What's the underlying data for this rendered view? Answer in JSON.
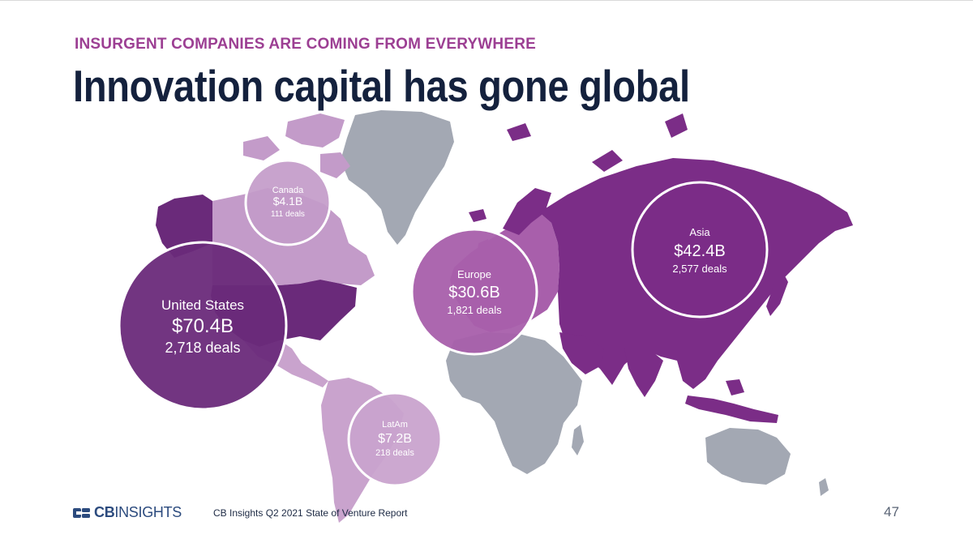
{
  "header": {
    "kicker": "INSURGENT COMPANIES ARE COMING FROM EVERYWHERE",
    "title": "Innovation capital has gone global"
  },
  "regions": [
    {
      "key": "canada",
      "name": "Canada",
      "amount": "$4.1B",
      "deals": "111 deals"
    },
    {
      "key": "united-states",
      "name": "United States",
      "amount": "$70.4B",
      "deals": "2,718 deals"
    },
    {
      "key": "europe",
      "name": "Europe",
      "amount": "$30.6B",
      "deals": "1,821 deals"
    },
    {
      "key": "asia",
      "name": "Asia",
      "amount": "$42.4B",
      "deals": "2,577 deals"
    },
    {
      "key": "latam",
      "name": "LatAm",
      "amount": "$7.2B",
      "deals": "218 deals"
    }
  ],
  "colors": {
    "accent": "#9c3f93",
    "title": "#14213d",
    "asia_fill": "#7b2d87",
    "us_fill": "#6a2a7a",
    "canada_fill": "#c39bc9",
    "latam_fill": "#c9a3cd",
    "europe_fill": "#a85fab",
    "neutral_land": "#a3a8b3"
  },
  "footer": {
    "logo_text_bold": "CB",
    "logo_text_light": "INSIGHTS",
    "source": "CB Insights Q2 2021 State of Venture Report",
    "page_number": "47"
  }
}
